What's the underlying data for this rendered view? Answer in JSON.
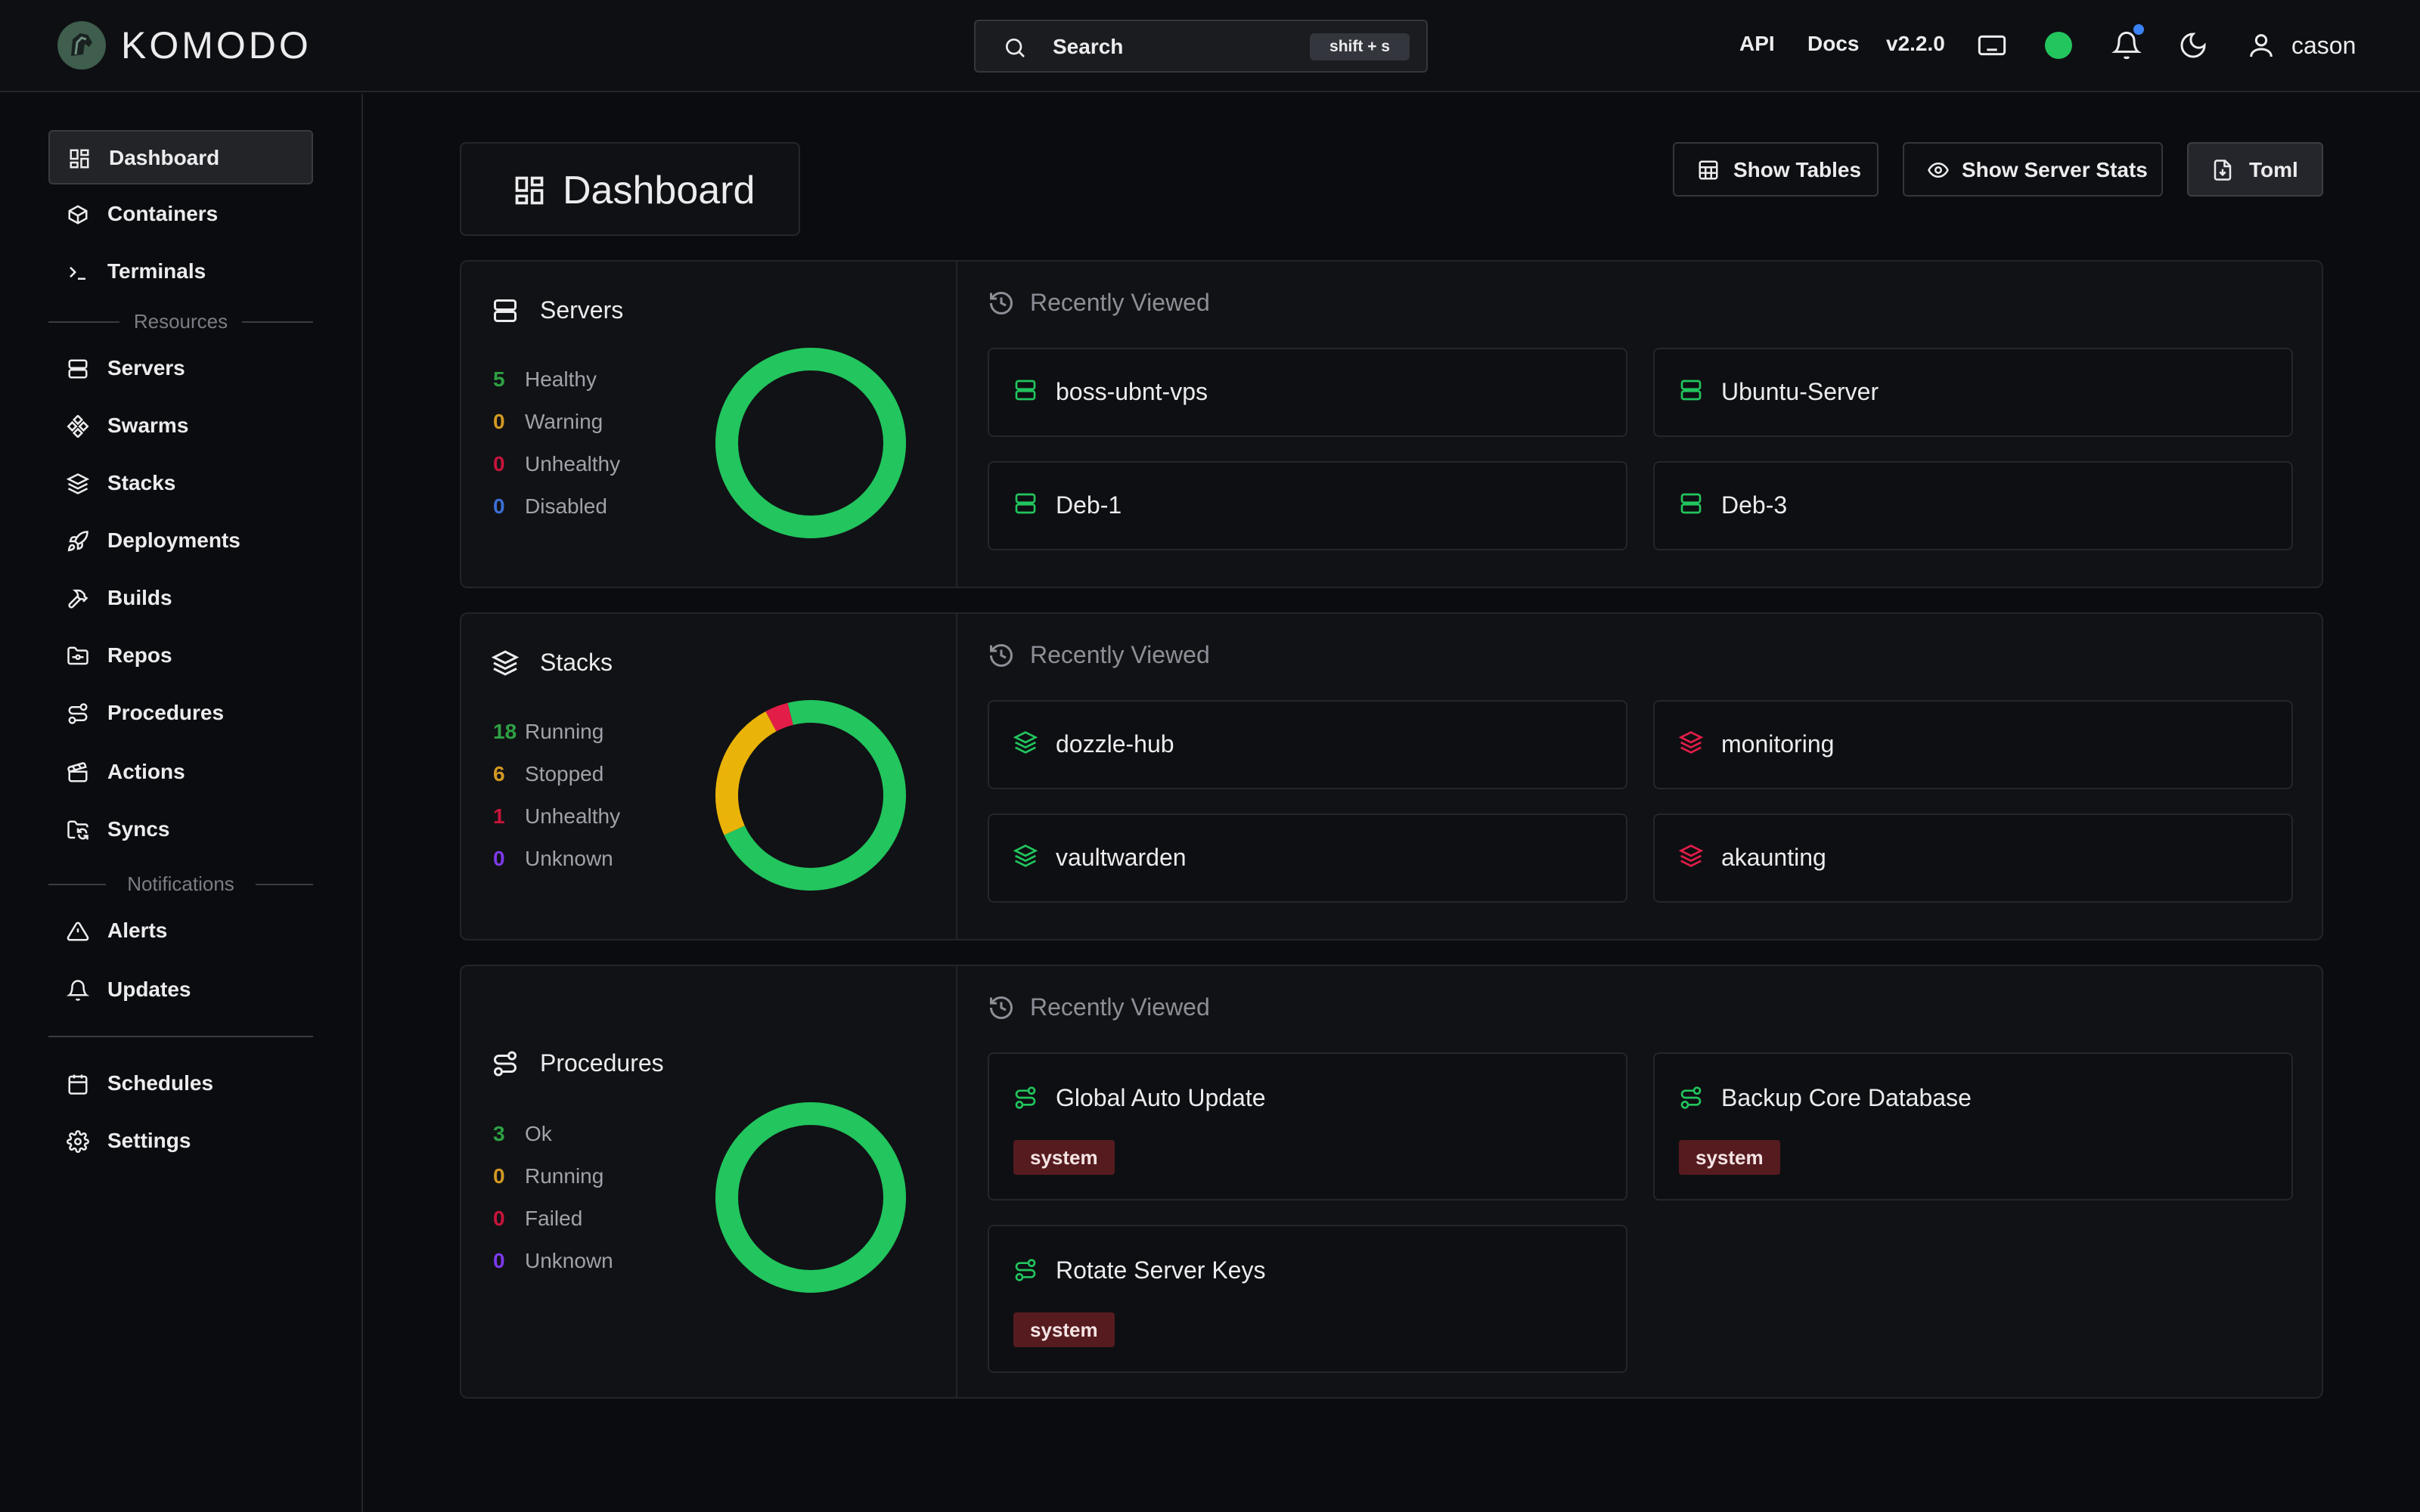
{
  "app": {
    "name": "KOMODO"
  },
  "search": {
    "label": "Search",
    "shortcut": "shift + s"
  },
  "header": {
    "api": "API",
    "docs": "Docs",
    "version": "v2.2.0",
    "user": "cason"
  },
  "sidebar": {
    "items": [
      {
        "label": "Dashboard",
        "icon": "dashboard-icon",
        "active": true
      },
      {
        "label": "Containers",
        "icon": "box-icon"
      },
      {
        "label": "Terminals",
        "icon": "terminal-icon"
      },
      {
        "label": "Servers",
        "icon": "server-icon"
      },
      {
        "label": "Swarms",
        "icon": "swarm-icon"
      },
      {
        "label": "Stacks",
        "icon": "layers-icon"
      },
      {
        "label": "Deployments",
        "icon": "rocket-icon"
      },
      {
        "label": "Builds",
        "icon": "hammer-icon"
      },
      {
        "label": "Repos",
        "icon": "folder-git-icon"
      },
      {
        "label": "Procedures",
        "icon": "route-icon"
      },
      {
        "label": "Actions",
        "icon": "clapperboard-icon"
      },
      {
        "label": "Syncs",
        "icon": "folder-sync-icon"
      },
      {
        "label": "Alerts",
        "icon": "alert-triangle-icon"
      },
      {
        "label": "Updates",
        "icon": "bell-icon"
      },
      {
        "label": "Schedules",
        "icon": "calendar-icon"
      },
      {
        "label": "Settings",
        "icon": "gear-icon"
      }
    ],
    "sections": {
      "resources": "Resources",
      "notifications": "Notifications"
    }
  },
  "page": {
    "title": "Dashboard"
  },
  "toolbar": {
    "show_tables": "Show Tables",
    "show_server_stats": "Show Server Stats",
    "toml": "Toml"
  },
  "colors": {
    "green": "#22c55e",
    "yellow": "#eab308",
    "red": "#e11d48",
    "blue": "#3b82f6",
    "purple": "#7c3aed"
  },
  "sections": {
    "servers": {
      "title": "Servers",
      "stats": [
        {
          "value": "5",
          "label": "Healthy",
          "color": "#2ea043"
        },
        {
          "value": "0",
          "label": "Warning",
          "color": "#d29922"
        },
        {
          "value": "0",
          "label": "Unhealthy",
          "color": "#c8143c"
        },
        {
          "value": "0",
          "label": "Disabled",
          "color": "#3b6fd4"
        }
      ],
      "recent_title": "Recently Viewed",
      "recent": [
        "boss-ubnt-vps",
        "Ubuntu-Server",
        "Deb-1",
        "Deb-3"
      ]
    },
    "stacks": {
      "title": "Stacks",
      "stats": [
        {
          "value": "18",
          "label": "Running",
          "color": "#2ea043"
        },
        {
          "value": "6",
          "label": "Stopped",
          "color": "#d29922"
        },
        {
          "value": "1",
          "label": "Unhealthy",
          "color": "#c8143c"
        },
        {
          "value": "0",
          "label": "Unknown",
          "color": "#7c3aed"
        }
      ],
      "recent_title": "Recently Viewed",
      "recent": [
        "dozzle-hub",
        "monitoring",
        "vaultwarden",
        "akaunting"
      ]
    },
    "procedures": {
      "title": "Procedures",
      "stats": [
        {
          "value": "3",
          "label": "Ok",
          "color": "#2ea043"
        },
        {
          "value": "0",
          "label": "Running",
          "color": "#d29922"
        },
        {
          "value": "0",
          "label": "Failed",
          "color": "#c8143c"
        },
        {
          "value": "0",
          "label": "Unknown",
          "color": "#7c3aed"
        }
      ],
      "recent_title": "Recently Viewed",
      "recent": [
        {
          "name": "Global Auto Update",
          "tag": "system"
        },
        {
          "name": "Backup Core Database",
          "tag": "system"
        },
        {
          "name": "Rotate Server Keys",
          "tag": "system"
        }
      ]
    }
  }
}
